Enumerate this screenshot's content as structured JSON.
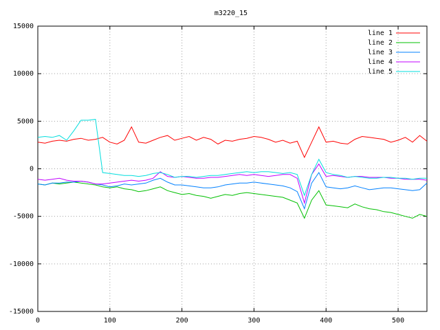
{
  "chart_data": {
    "type": "line",
    "title": "m3220_15",
    "x": [
      0,
      10,
      20,
      30,
      40,
      50,
      60,
      70,
      80,
      90,
      100,
      110,
      120,
      130,
      140,
      150,
      160,
      170,
      180,
      190,
      200,
      210,
      220,
      230,
      240,
      250,
      260,
      270,
      280,
      290,
      300,
      310,
      320,
      330,
      340,
      350,
      360,
      370,
      380,
      390,
      400,
      410,
      420,
      430,
      440,
      450,
      460,
      470,
      480,
      490,
      500,
      510,
      520,
      530,
      540
    ],
    "series": [
      {
        "name": "line 1",
        "color": "#ff0000",
        "values": [
          2800,
          2700,
          2900,
          3000,
          2900,
          3100,
          3200,
          3000,
          3100,
          3300,
          2800,
          2600,
          3000,
          4400,
          2800,
          2700,
          3000,
          3300,
          3500,
          3000,
          3200,
          3400,
          3000,
          3300,
          3100,
          2600,
          3000,
          2900,
          3100,
          3200,
          3400,
          3300,
          3100,
          2800,
          3000,
          2700,
          2900,
          1200,
          2800,
          4400,
          2800,
          2900,
          2700,
          2600,
          3100,
          3400,
          3300,
          3200,
          3100,
          2800,
          3000,
          3300,
          2800,
          3500,
          2900
        ]
      },
      {
        "name": "line 2",
        "color": "#00c000",
        "values": [
          -1600,
          -1700,
          -1500,
          -1600,
          -1500,
          -1400,
          -1500,
          -1600,
          -1700,
          -1900,
          -2000,
          -1900,
          -2100,
          -2200,
          -2400,
          -2300,
          -2100,
          -1900,
          -2300,
          -2500,
          -2700,
          -2600,
          -2800,
          -2900,
          -3100,
          -2900,
          -2700,
          -2800,
          -2600,
          -2500,
          -2600,
          -2700,
          -2800,
          -2900,
          -3000,
          -3300,
          -3600,
          -5200,
          -3300,
          -2300,
          -3800,
          -3900,
          -4000,
          -4100,
          -3700,
          -4000,
          -4200,
          -4300,
          -4500,
          -4600,
          -4800,
          -5000,
          -5200,
          -4800,
          -5000
        ]
      },
      {
        "name": "line 3",
        "color": "#0080ff",
        "values": [
          -1600,
          -1700,
          -1500,
          -1500,
          -1400,
          -1400,
          -1300,
          -1400,
          -1600,
          -1700,
          -1900,
          -1800,
          -1600,
          -1700,
          -1600,
          -1500,
          -1200,
          -1000,
          -1400,
          -1700,
          -1700,
          -1800,
          -1900,
          -2000,
          -2000,
          -1900,
          -1700,
          -1600,
          -1500,
          -1500,
          -1400,
          -1500,
          -1600,
          -1700,
          -1800,
          -2000,
          -2400,
          -4200,
          -1500,
          -400,
          -1900,
          -2000,
          -2100,
          -2000,
          -1800,
          -2000,
          -2200,
          -2100,
          -2000,
          -2000,
          -2100,
          -2200,
          -2300,
          -2200,
          -1500
        ]
      },
      {
        "name": "line 4",
        "color": "#c000ff",
        "values": [
          -1100,
          -1200,
          -1100,
          -1000,
          -1200,
          -1300,
          -1300,
          -1400,
          -1600,
          -1600,
          -1500,
          -1400,
          -1300,
          -1200,
          -1300,
          -1200,
          -1000,
          -300,
          -800,
          -900,
          -800,
          -900,
          -1000,
          -1000,
          -900,
          -900,
          -800,
          -700,
          -600,
          -700,
          -600,
          -700,
          -800,
          -700,
          -600,
          -600,
          -1000,
          -3600,
          -600,
          500,
          -800,
          -700,
          -800,
          -900,
          -800,
          -800,
          -900,
          -900,
          -900,
          -1000,
          -1000,
          -1100,
          -1100,
          -1100,
          -1200
        ]
      },
      {
        "name": "line 5",
        "color": "#00dddd",
        "values": [
          3300,
          3400,
          3300,
          3500,
          3000,
          4000,
          5100,
          5100,
          5200,
          -400,
          -500,
          -600,
          -700,
          -700,
          -800,
          -700,
          -500,
          -400,
          -600,
          -900,
          -800,
          -800,
          -900,
          -800,
          -700,
          -700,
          -600,
          -500,
          -400,
          -300,
          -400,
          -300,
          -300,
          -400,
          -500,
          -400,
          -600,
          -2800,
          -600,
          1000,
          -400,
          -600,
          -700,
          -900,
          -800,
          -900,
          -1000,
          -1000,
          -900,
          -900,
          -1000,
          -1000,
          -1100,
          -1000,
          -1000
        ]
      }
    ],
    "xlim": [
      0,
      540
    ],
    "xticks": [
      0,
      100,
      200,
      300,
      400,
      500
    ],
    "ylim": [
      -15000,
      15000
    ],
    "yticks": [
      -15000,
      -10000,
      -5000,
      0,
      5000,
      10000,
      15000
    ],
    "grid": true,
    "legend": "top-right"
  }
}
